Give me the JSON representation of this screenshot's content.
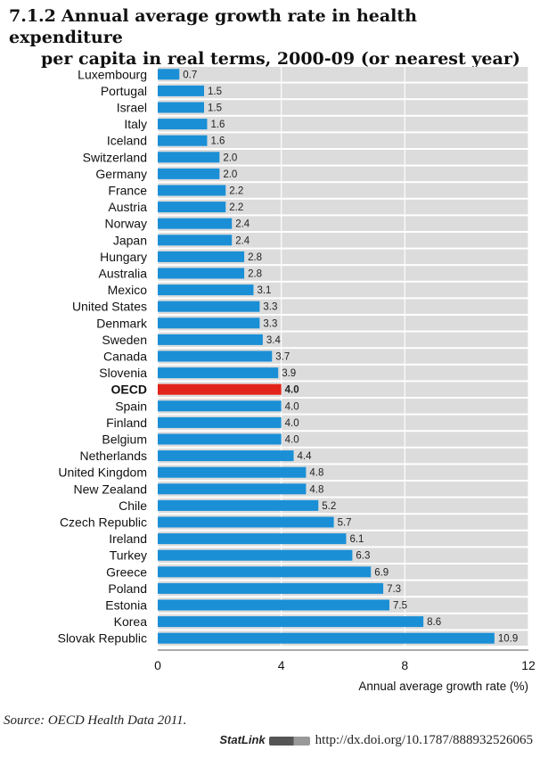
{
  "header": {
    "number": "7.1.2",
    "title_line1": "Annual average growth rate in health expenditure",
    "title_line2": "per capita in real terms, 2000-09 (or nearest year)"
  },
  "chart_data": {
    "type": "bar",
    "orientation": "horizontal",
    "categories": [
      "Luxembourg",
      "Portugal",
      "Israel",
      "Italy",
      "Iceland",
      "Switzerland",
      "Germany",
      "France",
      "Austria",
      "Norway",
      "Japan",
      "Hungary",
      "Australia",
      "Mexico",
      "United States",
      "Denmark",
      "Sweden",
      "Canada",
      "Slovenia",
      "OECD",
      "Spain",
      "Finland",
      "Belgium",
      "Netherlands",
      "United Kingdom",
      "New Zealand",
      "Chile",
      "Czech Republic",
      "Ireland",
      "Turkey",
      "Greece",
      "Poland",
      "Estonia",
      "Korea",
      "Slovak Republic"
    ],
    "values": [
      0.7,
      1.5,
      1.5,
      1.6,
      1.6,
      2.0,
      2.0,
      2.2,
      2.2,
      2.4,
      2.4,
      2.8,
      2.8,
      3.1,
      3.3,
      3.3,
      3.4,
      3.7,
      3.9,
      4.0,
      4.0,
      4.0,
      4.0,
      4.4,
      4.8,
      4.8,
      5.2,
      5.7,
      6.1,
      6.3,
      6.9,
      7.3,
      7.5,
      8.6,
      10.9
    ],
    "labels": [
      "0.7",
      "1.5",
      "1.5",
      "1.6",
      "1.6",
      "2.0",
      "2.0",
      "2.2",
      "2.2",
      "2.4",
      "2.4",
      "2.8",
      "2.8",
      "3.1",
      "3.3",
      "3.3",
      "3.4",
      "3.7",
      "3.9",
      "4.0",
      "4.0",
      "4.0",
      "4.0",
      "4.4",
      "4.8",
      "4.8",
      "5.2",
      "5.7",
      "6.1",
      "6.3",
      "6.9",
      "7.3",
      "7.5",
      "8.6",
      "10.9"
    ],
    "highlight": "OECD",
    "xlabel": "Annual average growth rate (%)",
    "xlim": [
      0,
      12
    ],
    "xticks": [
      0,
      4,
      8,
      12
    ],
    "grid": true,
    "colors": {
      "bar": "#1a8fd6",
      "highlight": "#e2231a",
      "band": "#dcdcdc"
    }
  },
  "footer": {
    "source_label": "Source:",
    "source_text": "OECD Health Data 2011.",
    "statlink_label": "StatLink",
    "url": "http://dx.doi.org/10.1787/888932526065"
  }
}
